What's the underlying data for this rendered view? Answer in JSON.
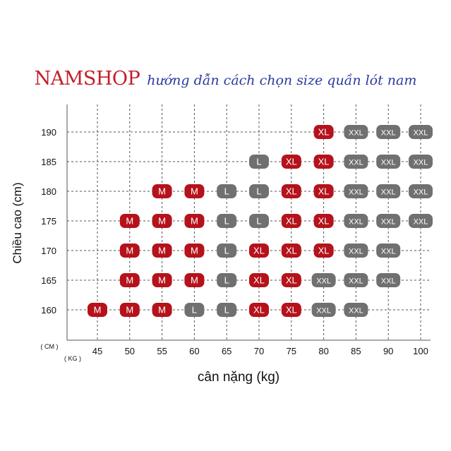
{
  "header": {
    "brand": "NAMSHOP",
    "subtitle": "hướng dẫn cách chọn size quần lót nam"
  },
  "colors": {
    "red_badge": "#b5121b",
    "gray_badge": "#707070",
    "brand_red": "#c41e2a",
    "subtitle_blue": "#2a3aa0",
    "grid": "#555555"
  },
  "chart_data": {
    "type": "table",
    "ylabel": "Chiều cao (cm)",
    "xlabel": "cân nặng (kg)",
    "y_unit_label": "( CM )",
    "x_unit_label": "( KG )",
    "x_ticks": [
      45,
      50,
      55,
      60,
      65,
      70,
      75,
      80,
      85,
      90,
      100
    ],
    "y_ticks": [
      160,
      165,
      170,
      175,
      180,
      185,
      190
    ],
    "grid": true,
    "cells": [
      {
        "height": 190,
        "weight": 80,
        "size": "XL"
      },
      {
        "height": 190,
        "weight": 85,
        "size": "XXL"
      },
      {
        "height": 190,
        "weight": 90,
        "size": "XXL"
      },
      {
        "height": 190,
        "weight": 100,
        "size": "XXL"
      },
      {
        "height": 185,
        "weight": 70,
        "size": "L"
      },
      {
        "height": 185,
        "weight": 75,
        "size": "XL"
      },
      {
        "height": 185,
        "weight": 80,
        "size": "XL"
      },
      {
        "height": 185,
        "weight": 85,
        "size": "XXL"
      },
      {
        "height": 185,
        "weight": 90,
        "size": "XXL"
      },
      {
        "height": 185,
        "weight": 100,
        "size": "XXL"
      },
      {
        "height": 180,
        "weight": 55,
        "size": "M"
      },
      {
        "height": 180,
        "weight": 60,
        "size": "M"
      },
      {
        "height": 180,
        "weight": 65,
        "size": "L"
      },
      {
        "height": 180,
        "weight": 70,
        "size": "L"
      },
      {
        "height": 180,
        "weight": 75,
        "size": "XL"
      },
      {
        "height": 180,
        "weight": 80,
        "size": "XL"
      },
      {
        "height": 180,
        "weight": 85,
        "size": "XXL"
      },
      {
        "height": 180,
        "weight": 90,
        "size": "XXL"
      },
      {
        "height": 180,
        "weight": 100,
        "size": "XXL"
      },
      {
        "height": 175,
        "weight": 50,
        "size": "M"
      },
      {
        "height": 175,
        "weight": 55,
        "size": "M"
      },
      {
        "height": 175,
        "weight": 60,
        "size": "M"
      },
      {
        "height": 175,
        "weight": 65,
        "size": "L"
      },
      {
        "height": 175,
        "weight": 70,
        "size": "L"
      },
      {
        "height": 175,
        "weight": 75,
        "size": "XL"
      },
      {
        "height": 175,
        "weight": 80,
        "size": "XL"
      },
      {
        "height": 175,
        "weight": 85,
        "size": "XXL"
      },
      {
        "height": 175,
        "weight": 90,
        "size": "XXL"
      },
      {
        "height": 175,
        "weight": 100,
        "size": "XXL"
      },
      {
        "height": 170,
        "weight": 50,
        "size": "M"
      },
      {
        "height": 170,
        "weight": 55,
        "size": "M"
      },
      {
        "height": 170,
        "weight": 60,
        "size": "M"
      },
      {
        "height": 170,
        "weight": 65,
        "size": "L"
      },
      {
        "height": 170,
        "weight": 70,
        "size": "XL"
      },
      {
        "height": 170,
        "weight": 75,
        "size": "XL"
      },
      {
        "height": 170,
        "weight": 80,
        "size": "XL"
      },
      {
        "height": 170,
        "weight": 85,
        "size": "XXL"
      },
      {
        "height": 170,
        "weight": 90,
        "size": "XXL"
      },
      {
        "height": 165,
        "weight": 50,
        "size": "M"
      },
      {
        "height": 165,
        "weight": 55,
        "size": "M"
      },
      {
        "height": 165,
        "weight": 60,
        "size": "M"
      },
      {
        "height": 165,
        "weight": 65,
        "size": "L"
      },
      {
        "height": 165,
        "weight": 70,
        "size": "XL"
      },
      {
        "height": 165,
        "weight": 75,
        "size": "XL"
      },
      {
        "height": 165,
        "weight": 80,
        "size": "XXL"
      },
      {
        "height": 165,
        "weight": 85,
        "size": "XXL"
      },
      {
        "height": 165,
        "weight": 90,
        "size": "XXL"
      },
      {
        "height": 160,
        "weight": 45,
        "size": "M"
      },
      {
        "height": 160,
        "weight": 50,
        "size": "M"
      },
      {
        "height": 160,
        "weight": 55,
        "size": "M"
      },
      {
        "height": 160,
        "weight": 60,
        "size": "L"
      },
      {
        "height": 160,
        "weight": 65,
        "size": "L"
      },
      {
        "height": 160,
        "weight": 70,
        "size": "XL"
      },
      {
        "height": 160,
        "weight": 75,
        "size": "XL"
      },
      {
        "height": 160,
        "weight": 80,
        "size": "XXL"
      },
      {
        "height": 160,
        "weight": 85,
        "size": "XXL"
      }
    ]
  }
}
